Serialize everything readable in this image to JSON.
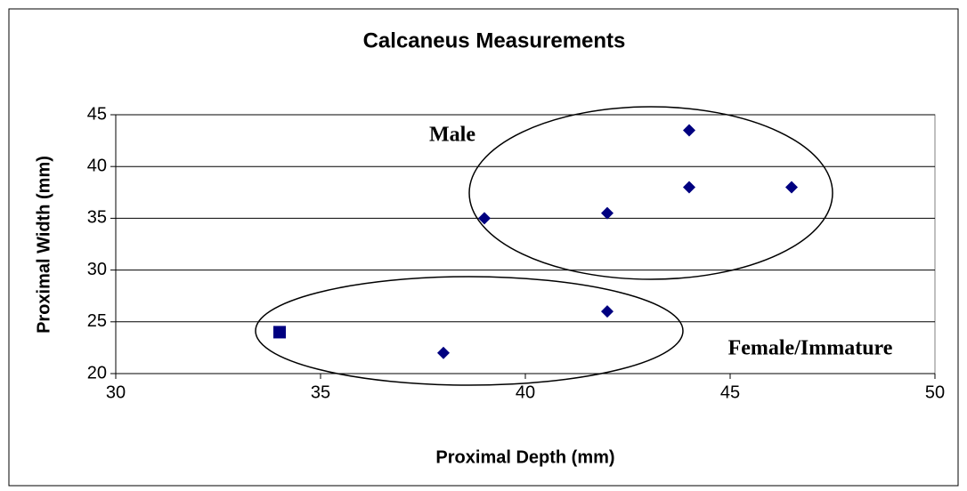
{
  "chart_data": {
    "type": "scatter",
    "title": "Calcaneus Measurements",
    "x_label": "Proximal Depth (mm)",
    "y_label": "Proximal Width (mm)",
    "annotations": [
      "Male",
      "Female/Immature"
    ],
    "series": [
      {
        "color": "#000080",
        "marker": "diamond",
        "x": [
          39,
          42,
          44,
          44,
          46.5,
          42,
          38
        ],
        "values": [
          35,
          35.5,
          43.5,
          38,
          38,
          26,
          22
        ]
      },
      {
        "color": "#000080",
        "marker": "square",
        "x": [
          34
        ],
        "values": [
          24
        ]
      }
    ],
    "xlim": [
      30,
      50
    ],
    "xticks": [
      30,
      35,
      40,
      45,
      50
    ],
    "ylim": [
      20,
      45
    ],
    "yticks": [
      20,
      25,
      30,
      35,
      40,
      45
    ],
    "grid": true
  }
}
